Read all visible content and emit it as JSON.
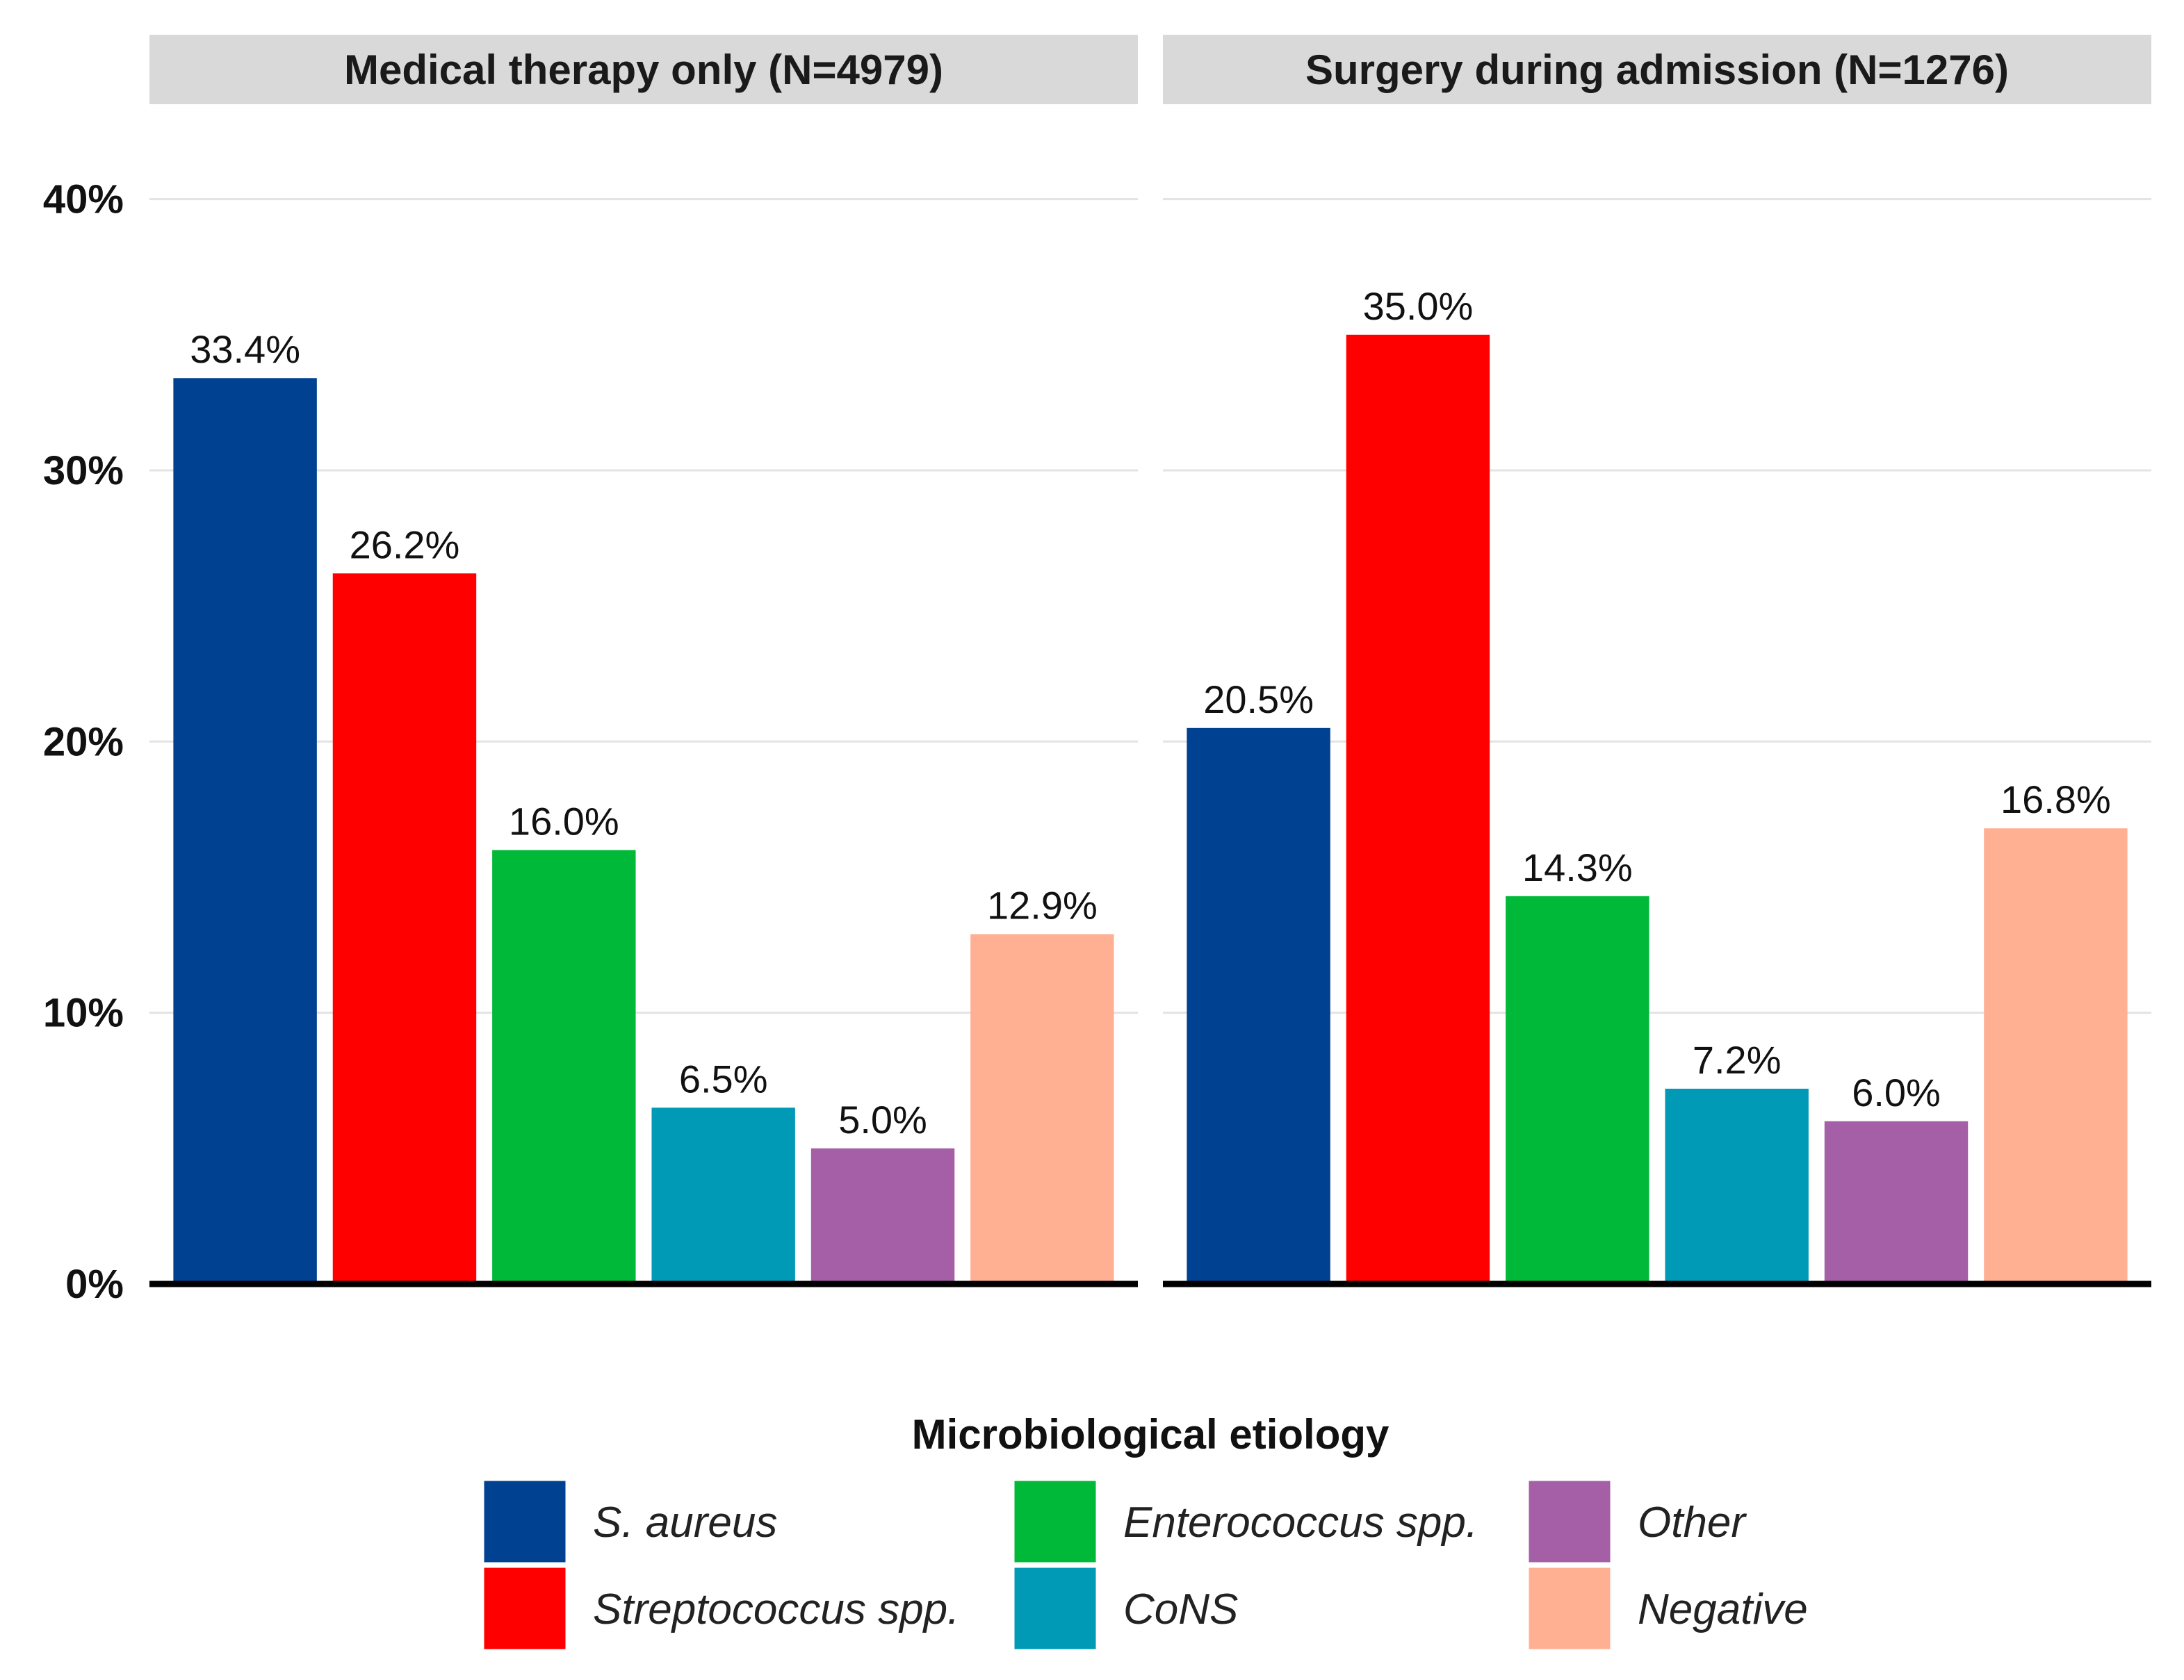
{
  "chart_data": {
    "type": "bar",
    "categories": [
      "S. aureus",
      "Streptococcus spp.",
      "Enterococcus spp.",
      "CoNS",
      "Other",
      "Negative"
    ],
    "colors": [
      "#004191",
      "#ff0000",
      "#00b938",
      "#009ab7",
      "#a45fa7",
      "#ffb093"
    ],
    "panels": [
      {
        "title": "Medical therapy only (N=4979)",
        "values": [
          33.4,
          26.2,
          16.0,
          6.5,
          5.0,
          12.9
        ],
        "labels": [
          "33.4%",
          "26.2%",
          "16.0%",
          "6.5%",
          "5.0%",
          "12.9%"
        ]
      },
      {
        "title": "Surgery during admission (N=1276)",
        "values": [
          20.5,
          35.0,
          14.3,
          7.2,
          6.0,
          16.8
        ],
        "labels": [
          "20.5%",
          "35.0%",
          "14.3%",
          "7.2%",
          "6.0%",
          "16.8%"
        ]
      }
    ],
    "y_ticks": [
      0,
      10,
      20,
      30,
      40
    ],
    "y_tick_labels": [
      "0%",
      "10%",
      "20%",
      "30%",
      "40%"
    ],
    "ylim": [
      0,
      43.5
    ],
    "grid": true,
    "xlabel": "",
    "ylabel": "",
    "legend": {
      "title": "Microbiological etiology",
      "position": "bottom",
      "entries": [
        "S. aureus",
        "Streptococcus spp.",
        "Enterococcus spp.",
        "CoNS",
        "Other",
        "Negative"
      ]
    }
  }
}
